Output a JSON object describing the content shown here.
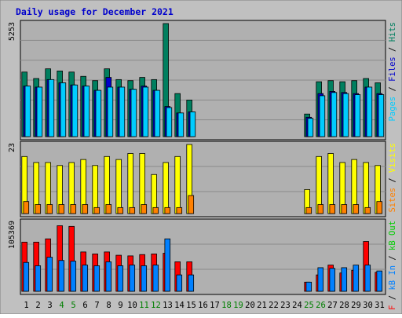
{
  "title": "Daily usage for December 2021",
  "colors": {
    "frame": "#c0c0c0",
    "panel": "#b0b0b0",
    "grid": "#8a8a8a",
    "title": "#0000cc",
    "hits": "#007f5f",
    "files": "#0000cc",
    "pages": "#00ccff",
    "visits": "#ffff00",
    "sites": "#ff8000",
    "kb_f": "#ff0000",
    "kb_in": "#0080ff",
    "kb_out": "#00cc00",
    "weekend": "#007f00",
    "text": "#000000"
  },
  "legends": {
    "top": [
      {
        "text": "Pages",
        "color": "#00ccff"
      },
      {
        "text": " / ",
        "color": "#000000"
      },
      {
        "text": "Files",
        "color": "#0000cc"
      },
      {
        "text": " / ",
        "color": "#000000"
      },
      {
        "text": "Hits",
        "color": "#007f5f"
      }
    ],
    "middle": [
      {
        "text": "Sites",
        "color": "#ff8000"
      },
      {
        "text": " / ",
        "color": "#000000"
      },
      {
        "text": "Visits",
        "color": "#ffff00"
      }
    ],
    "bottom": [
      {
        "text": "kB F",
        "color": "#ff0000"
      },
      {
        "text": " / ",
        "color": "#000000"
      },
      {
        "text": "kB In",
        "color": "#0080ff"
      },
      {
        "text": " / ",
        "color": "#000000"
      },
      {
        "text": "kB Out",
        "color": "#00cc00"
      }
    ]
  },
  "chart_data": {
    "type": "bar",
    "title": "Daily usage for December 2021",
    "days": [
      "1",
      "2",
      "3",
      "4",
      "5",
      "6",
      "7",
      "8",
      "9",
      "10",
      "11",
      "12",
      "13",
      "14",
      "15",
      "16",
      "17",
      "18",
      "19",
      "20",
      "21",
      "22",
      "23",
      "24",
      "25",
      "26",
      "27",
      "28",
      "29",
      "30",
      "31"
    ],
    "weekend_days": [
      "4",
      "5",
      "11",
      "12",
      "18",
      "19",
      "25",
      "26"
    ],
    "panels": [
      {
        "name": "hits-files-pages",
        "ymax_label": "5253",
        "ymax": 5253,
        "series": [
          {
            "name": "Hits",
            "color": "#007f5f",
            "values": [
              3000,
              2700,
              3150,
              3050,
              3000,
              2800,
              2600,
              3150,
              2650,
              2600,
              2750,
              2650,
              5253,
              2000,
              1700,
              0,
              0,
              0,
              0,
              0,
              0,
              0,
              0,
              0,
              1050,
              2550,
              2600,
              2550,
              2600,
              2700,
              2500
            ]
          },
          {
            "name": "Files",
            "color": "#0000cc",
            "values": [
              2350,
              2300,
              2650,
              2500,
              2400,
              2350,
              2150,
              2750,
              2300,
              2200,
              2350,
              2150,
              1400,
              1100,
              1150,
              0,
              0,
              0,
              0,
              0,
              0,
              0,
              0,
              0,
              900,
              2000,
              2100,
              2050,
              2000,
              2300,
              2000
            ]
          },
          {
            "name": "Pages",
            "color": "#00ccff",
            "values": [
              2350,
              2300,
              2650,
              2500,
              2400,
              2350,
              2150,
              2300,
              2300,
              2200,
              2300,
              2150,
              1350,
              1100,
              1150,
              0,
              0,
              0,
              0,
              0,
              0,
              0,
              0,
              0,
              850,
              1900,
              2050,
              2000,
              1950,
              2300,
              1950
            ]
          }
        ]
      },
      {
        "name": "visits-sites",
        "ymax_label": "23",
        "ymax": 23,
        "series": [
          {
            "name": "Visits",
            "color": "#ffff00",
            "values": [
              19,
              17,
              17,
              16,
              17,
              18,
              16,
              19,
              18,
              20,
              20,
              13,
              17,
              19,
              23,
              0,
              0,
              0,
              0,
              0,
              0,
              0,
              0,
              0,
              8,
              19,
              20,
              17,
              18,
              17,
              16
            ]
          },
          {
            "name": "Sites",
            "color": "#ff8000",
            "values": [
              4,
              3,
              3,
              3,
              3,
              3,
              2,
              3,
              2,
              2,
              3,
              2,
              2,
              2,
              6,
              0,
              0,
              0,
              0,
              0,
              0,
              0,
              0,
              0,
              2,
              3,
              3,
              3,
              3,
              2,
              4
            ]
          }
        ]
      },
      {
        "name": "kbytes",
        "ymax_label": "105369",
        "ymax": 105369,
        "series": [
          {
            "name": "kB F",
            "color": "#ff0000",
            "values": [
              75000,
              75000,
              80000,
              100000,
              99000,
              60000,
              57000,
              60000,
              55000,
              54000,
              56000,
              57000,
              58000,
              45000,
              45000,
              0,
              0,
              0,
              0,
              0,
              0,
              0,
              0,
              0,
              14000,
              25000,
              40000,
              28000,
              32000,
              76000,
              29000
            ]
          },
          {
            "name": "kB In",
            "color": "#0080ff",
            "values": [
              44000,
              39000,
              52000,
              47000,
              46000,
              40000,
              39000,
              45000,
              39000,
              40000,
              39000,
              40000,
              80000,
              25000,
              25000,
              0,
              0,
              0,
              0,
              0,
              0,
              0,
              0,
              0,
              14000,
              36000,
              35000,
              36000,
              40000,
              40000,
              31000
            ]
          }
        ]
      }
    ]
  }
}
